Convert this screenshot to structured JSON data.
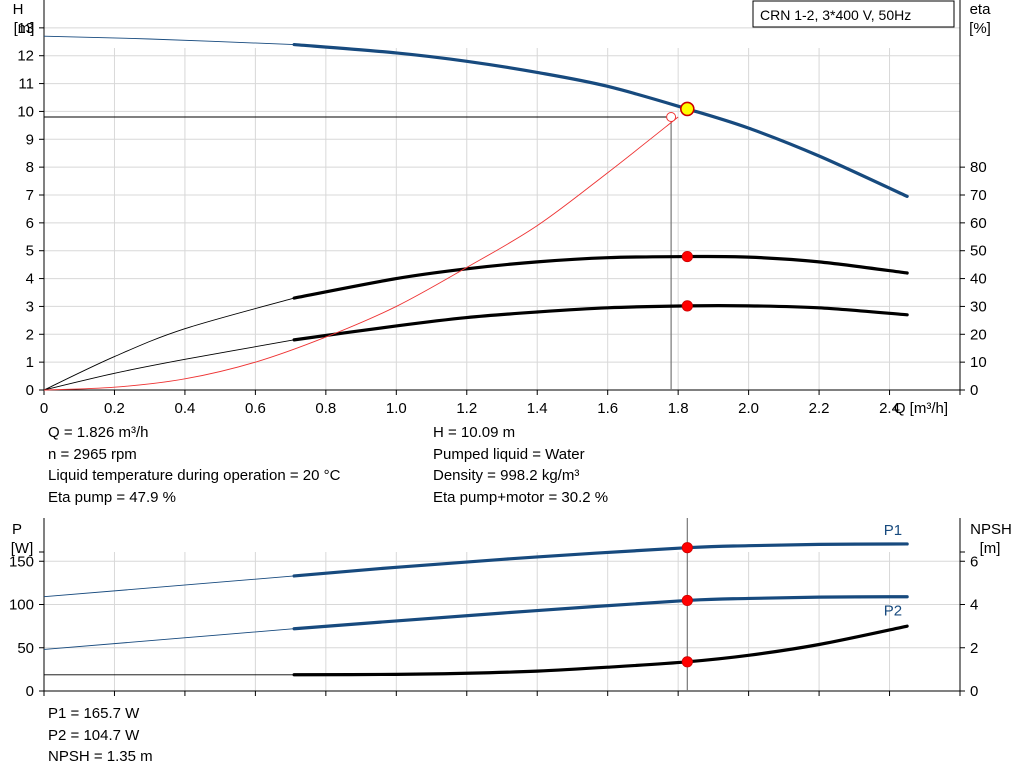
{
  "chart_data": [
    {
      "type": "line",
      "legend_box": "CRN 1-2, 3*400 V, 50Hz",
      "xlabel": "Q [m³/h]",
      "xlim": [
        0,
        2.6
      ],
      "xticks": [
        "0",
        "0.2",
        "0.4",
        "0.6",
        "0.8",
        "1.0",
        "1.2",
        "1.4",
        "1.6",
        "1.8",
        "2.0",
        "2.2",
        "2.4"
      ],
      "ylabel_left": [
        "H",
        "[m]"
      ],
      "ylim_left": [
        0,
        14
      ],
      "yticks_left": [
        0,
        1,
        2,
        3,
        4,
        5,
        6,
        7,
        8,
        9,
        10,
        11,
        12,
        13
      ],
      "ylabel_right": [
        "eta",
        "[%]"
      ],
      "ylim_right": [
        0,
        140
      ],
      "yticks_right": [
        0,
        10,
        20,
        30,
        40,
        50,
        60,
        70,
        80
      ],
      "grid": true,
      "series": [
        {
          "color": "#174a7e",
          "axis": "left",
          "operating_start": 0.71,
          "x": [
            0,
            0.3,
            0.71,
            1.0,
            1.2,
            1.4,
            1.6,
            1.826,
            2.0,
            2.2,
            2.45
          ],
          "y": [
            12.7,
            12.6,
            12.4,
            12.1,
            11.8,
            11.4,
            10.9,
            10.09,
            9.4,
            8.4,
            6.95
          ]
        },
        {
          "color": "#000000",
          "axis": "right",
          "operating_start": 0.71,
          "x": [
            0,
            0.2,
            0.4,
            0.71,
            1.0,
            1.2,
            1.4,
            1.6,
            1.826,
            2.0,
            2.2,
            2.45
          ],
          "y": [
            0,
            12,
            22,
            33,
            40,
            43.5,
            46,
            47.5,
            47.9,
            47.7,
            46,
            42
          ]
        },
        {
          "color": "#000000",
          "axis": "right",
          "operating_start": 0.71,
          "x": [
            0,
            0.2,
            0.4,
            0.71,
            1.0,
            1.2,
            1.4,
            1.6,
            1.826,
            2.0,
            2.2,
            2.45
          ],
          "y": [
            0,
            6,
            11,
            18,
            23,
            26,
            28,
            29.5,
            30.2,
            30.2,
            29.5,
            27
          ]
        },
        {
          "color": "#ee3333",
          "axis": "left",
          "thin": true,
          "x": [
            0,
            0.2,
            0.4,
            0.6,
            0.8,
            1.0,
            1.2,
            1.4,
            1.6,
            1.8
          ],
          "y": [
            0,
            0.1,
            0.4,
            1.0,
            1.9,
            3.0,
            4.4,
            5.9,
            7.8,
            9.8
          ]
        }
      ],
      "markers": [
        {
          "x": 1.826,
          "y": 10.09,
          "axis": "left",
          "kind": "duty"
        },
        {
          "x": 1.78,
          "y": 9.8,
          "axis": "left",
          "kind": "open"
        },
        {
          "x": 1.826,
          "y": 47.9,
          "axis": "right",
          "kind": "red"
        },
        {
          "x": 1.826,
          "y": 30.2,
          "axis": "right",
          "kind": "red"
        }
      ],
      "reference_lines": {
        "h_y": 9.8,
        "v_x": 1.78
      }
    },
    {
      "type": "line",
      "xlim": [
        0,
        2.6
      ],
      "ylabel_left": [
        "P",
        "[W]"
      ],
      "ylim_left": [
        0,
        200
      ],
      "yticks_left": [
        0,
        50,
        100,
        150
      ],
      "ylabel_right": [
        "NPSH",
        "[m]"
      ],
      "ylim_right": [
        0,
        8
      ],
      "yticks_right": [
        0,
        2,
        4,
        6
      ],
      "grid": true,
      "series": [
        {
          "name": "P1",
          "color": "#174a7e",
          "axis": "left",
          "operating_start": 0.71,
          "x": [
            0,
            0.71,
            1.0,
            1.4,
            1.826,
            2.0,
            2.2,
            2.45
          ],
          "y": [
            109,
            133,
            143,
            155,
            165.7,
            168,
            169.5,
            170
          ]
        },
        {
          "name": "P2",
          "color": "#174a7e",
          "axis": "left",
          "operating_start": 0.71,
          "x": [
            0,
            0.71,
            1.0,
            1.4,
            1.826,
            2.0,
            2.2,
            2.45
          ],
          "y": [
            48,
            72,
            81,
            93,
            104.7,
            107,
            108.5,
            109
          ]
        },
        {
          "color": "#000000",
          "axis": "right",
          "operating_start": 0.71,
          "x": [
            0,
            0.71,
            1.0,
            1.2,
            1.4,
            1.6,
            1.826,
            2.0,
            2.2,
            2.45
          ],
          "y": [
            0.75,
            0.75,
            0.77,
            0.82,
            0.92,
            1.1,
            1.35,
            1.65,
            2.15,
            3.0
          ]
        }
      ],
      "markers": [
        {
          "x": 1.826,
          "y": 165.7,
          "axis": "left",
          "kind": "red"
        },
        {
          "x": 1.826,
          "y": 104.7,
          "axis": "left",
          "kind": "red"
        },
        {
          "x": 1.826,
          "y": 1.35,
          "axis": "right",
          "kind": "red"
        }
      ],
      "reference_lines": {
        "v_x": 1.826
      }
    }
  ],
  "info_top_left": [
    "Q = 1.826 m³/h",
    "n = 2965 rpm",
    "Liquid temperature during operation = 20 °C",
    "Eta pump = 47.9 %"
  ],
  "info_top_right": [
    "H = 10.09 m",
    "Pumped liquid = Water",
    "Density = 998.2 kg/m³",
    "Eta pump+motor = 30.2 %"
  ],
  "info_bottom": [
    "P1 = 165.7 W",
    "P2 = 104.7 W",
    "NPSH = 1.35 m"
  ]
}
